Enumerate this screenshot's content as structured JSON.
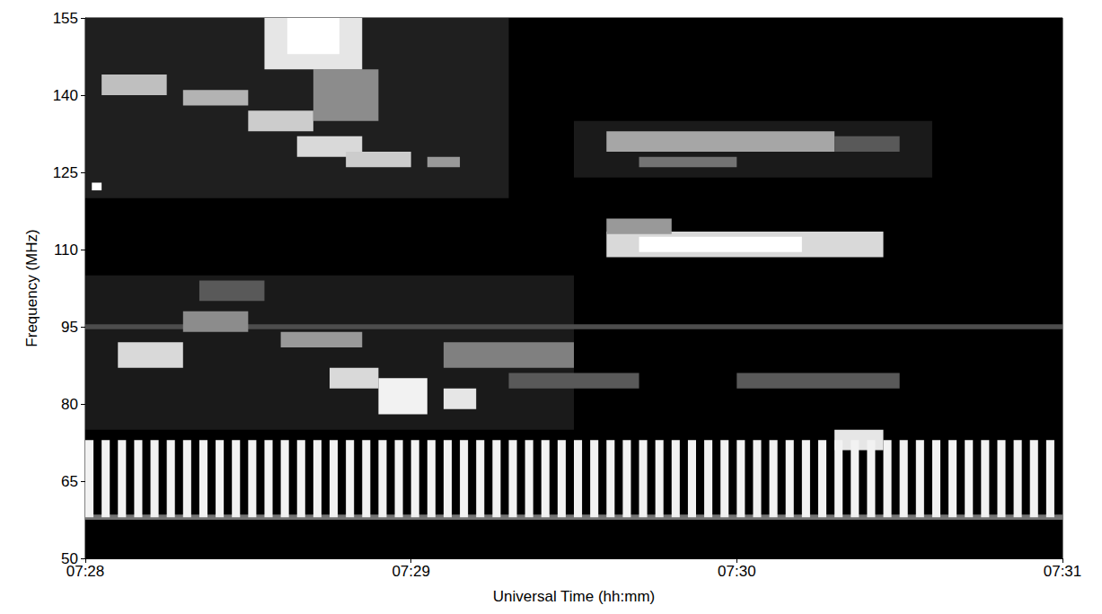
{
  "chart_data": {
    "type": "heatmap",
    "x_label": "Universal Time (hh:mm)",
    "y_label": "Frequency (MHz)",
    "xlim": [
      448,
      451
    ],
    "xticks": [
      {
        "value": 448,
        "label": "07:28"
      },
      {
        "value": 449,
        "label": "07:29"
      },
      {
        "value": 450,
        "label": "07:30"
      },
      {
        "value": 451,
        "label": "07:31"
      }
    ],
    "ylim": [
      50,
      155
    ],
    "yticks": [
      50,
      65,
      80,
      95,
      110,
      125,
      140,
      155
    ],
    "grid": false,
    "cells": [
      [
        448.0,
        449.3,
        120,
        155,
        0.12
      ],
      [
        448.0,
        449.5,
        75,
        105,
        0.1
      ],
      [
        449.5,
        450.6,
        124,
        135,
        0.1
      ],
      [
        448.0,
        451.0,
        94.5,
        95.5,
        0.3
      ],
      [
        448.05,
        448.25,
        140,
        144,
        0.75
      ],
      [
        448.3,
        448.5,
        138,
        141,
        0.7
      ],
      [
        448.5,
        448.7,
        133,
        137,
        0.8
      ],
      [
        448.65,
        448.85,
        128,
        132,
        0.85
      ],
      [
        448.8,
        449.0,
        126,
        129,
        0.8
      ],
      [
        449.05,
        449.15,
        126,
        128,
        0.6
      ],
      [
        448.7,
        448.9,
        135,
        145,
        0.55
      ],
      [
        448.55,
        448.85,
        145,
        155,
        0.9
      ],
      [
        448.62,
        448.78,
        148,
        155,
        1.0
      ],
      [
        449.6,
        450.3,
        129,
        133,
        0.65
      ],
      [
        450.3,
        450.5,
        129,
        132,
        0.35
      ],
      [
        449.7,
        450.0,
        126,
        128,
        0.45
      ],
      [
        449.6,
        450.45,
        108.5,
        113.5,
        0.85
      ],
      [
        449.7,
        450.2,
        109.5,
        112.5,
        1.0
      ],
      [
        449.6,
        449.8,
        113,
        116,
        0.6
      ],
      [
        448.1,
        448.3,
        87,
        92,
        0.85
      ],
      [
        448.3,
        448.5,
        94,
        98,
        0.55
      ],
      [
        448.35,
        448.55,
        100,
        104,
        0.35
      ],
      [
        448.6,
        448.85,
        91,
        94,
        0.6
      ],
      [
        448.75,
        448.9,
        83,
        87,
        0.85
      ],
      [
        448.9,
        449.05,
        78,
        85,
        0.95
      ],
      [
        449.1,
        449.2,
        79,
        83,
        0.9
      ],
      [
        449.1,
        449.5,
        87,
        92,
        0.5
      ],
      [
        449.3,
        449.7,
        83,
        86,
        0.35
      ],
      [
        450.0,
        450.5,
        83,
        86,
        0.35
      ],
      [
        450.3,
        450.45,
        71,
        75,
        0.9
      ],
      [
        448.02,
        448.05,
        121.5,
        123,
        1.0
      ],
      [
        448.0,
        451.0,
        57.5,
        58.5,
        0.45
      ],
      [
        448.0,
        448.025,
        58,
        73,
        0.95
      ],
      [
        448.05,
        448.075,
        58,
        73,
        0.95
      ],
      [
        448.1,
        448.125,
        58,
        73,
        0.95
      ],
      [
        448.15,
        448.175,
        58,
        73,
        0.95
      ],
      [
        448.2,
        448.225,
        58,
        73,
        0.95
      ],
      [
        448.25,
        448.275,
        58,
        73,
        0.95
      ],
      [
        448.3,
        448.325,
        58,
        73,
        0.95
      ],
      [
        448.35,
        448.375,
        58,
        73,
        0.95
      ],
      [
        448.4,
        448.425,
        58,
        73,
        0.95
      ],
      [
        448.45,
        448.475,
        58,
        73,
        0.95
      ],
      [
        448.5,
        448.525,
        58,
        73,
        0.95
      ],
      [
        448.55,
        448.575,
        58,
        73,
        0.95
      ],
      [
        448.6,
        448.625,
        58,
        73,
        0.95
      ],
      [
        448.65,
        448.675,
        58,
        73,
        0.95
      ],
      [
        448.7,
        448.725,
        58,
        73,
        0.95
      ],
      [
        448.75,
        448.775,
        58,
        73,
        0.95
      ],
      [
        448.8,
        448.825,
        58,
        73,
        0.95
      ],
      [
        448.85,
        448.875,
        58,
        73,
        0.95
      ],
      [
        448.9,
        448.925,
        58,
        73,
        0.95
      ],
      [
        448.95,
        448.975,
        58,
        73,
        0.95
      ],
      [
        449.0,
        449.025,
        58,
        73,
        0.95
      ],
      [
        449.05,
        449.075,
        58,
        73,
        0.95
      ],
      [
        449.1,
        449.125,
        58,
        73,
        0.95
      ],
      [
        449.15,
        449.175,
        58,
        73,
        0.95
      ],
      [
        449.2,
        449.225,
        58,
        73,
        0.95
      ],
      [
        449.25,
        449.275,
        58,
        73,
        0.95
      ],
      [
        449.3,
        449.325,
        58,
        73,
        0.95
      ],
      [
        449.35,
        449.375,
        58,
        73,
        0.95
      ],
      [
        449.4,
        449.425,
        58,
        73,
        0.95
      ],
      [
        449.45,
        449.475,
        58,
        73,
        0.95
      ],
      [
        449.5,
        449.525,
        58,
        73,
        0.95
      ],
      [
        449.55,
        449.575,
        58,
        73,
        0.95
      ],
      [
        449.6,
        449.625,
        58,
        73,
        0.95
      ],
      [
        449.65,
        449.675,
        58,
        73,
        0.95
      ],
      [
        449.7,
        449.725,
        58,
        73,
        0.95
      ],
      [
        449.75,
        449.775,
        58,
        73,
        0.95
      ],
      [
        449.8,
        449.825,
        58,
        73,
        0.95
      ],
      [
        449.85,
        449.875,
        58,
        73,
        0.95
      ],
      [
        449.9,
        449.925,
        58,
        73,
        0.95
      ],
      [
        449.95,
        449.975,
        58,
        73,
        0.95
      ],
      [
        450.0,
        450.025,
        58,
        73,
        0.95
      ],
      [
        450.05,
        450.075,
        58,
        73,
        0.95
      ],
      [
        450.1,
        450.125,
        58,
        73,
        0.95
      ],
      [
        450.15,
        450.175,
        58,
        73,
        0.95
      ],
      [
        450.2,
        450.225,
        58,
        73,
        0.95
      ],
      [
        450.25,
        450.275,
        58,
        73,
        0.95
      ],
      [
        450.3,
        450.325,
        58,
        73,
        0.95
      ],
      [
        450.35,
        450.375,
        58,
        73,
        0.95
      ],
      [
        450.4,
        450.425,
        58,
        73,
        0.95
      ],
      [
        450.45,
        450.475,
        58,
        73,
        0.95
      ],
      [
        450.5,
        450.525,
        58,
        73,
        0.95
      ],
      [
        450.55,
        450.575,
        58,
        73,
        0.95
      ],
      [
        450.6,
        450.625,
        58,
        73,
        0.95
      ],
      [
        450.65,
        450.675,
        58,
        73,
        0.95
      ],
      [
        450.7,
        450.725,
        58,
        73,
        0.95
      ],
      [
        450.75,
        450.775,
        58,
        73,
        0.95
      ],
      [
        450.8,
        450.825,
        58,
        73,
        0.95
      ],
      [
        450.85,
        450.875,
        58,
        73,
        0.95
      ],
      [
        450.9,
        450.925,
        58,
        73,
        0.95
      ],
      [
        450.95,
        450.975,
        58,
        73,
        0.95
      ]
    ]
  }
}
